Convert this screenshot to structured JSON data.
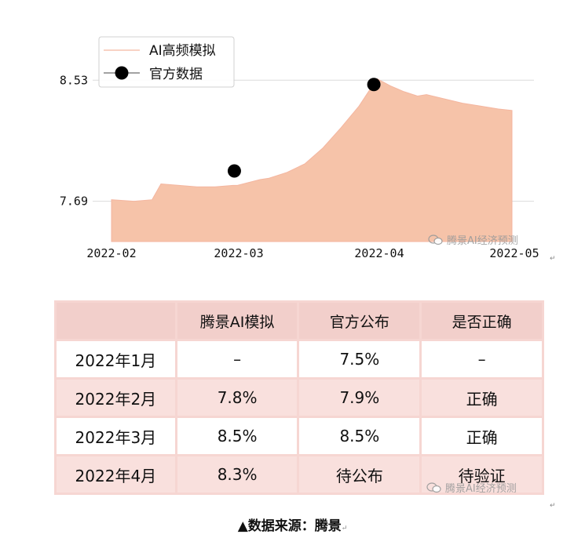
{
  "chart_data": {
    "type": "area",
    "legend": {
      "placement": "top-left",
      "entries": [
        "AI高频模拟",
        "官方数据"
      ]
    },
    "x_ticks": [
      "2022-02",
      "2022-03",
      "2022-04",
      "2022-05"
    ],
    "y_ticks": [
      "8.53",
      "7.69"
    ],
    "ylim": [
      7.41,
      8.76
    ],
    "xlim": [
      "2022-02-01",
      "2022-05-01"
    ],
    "grid": "horizontal",
    "series": [
      {
        "name": "AI高频模拟",
        "kind": "area",
        "color": "#f6c3a9",
        "line_color": "#f4b6a0",
        "x": [
          "2022-02-01",
          "2022-02-06",
          "2022-02-10",
          "2022-02-12",
          "2022-02-16",
          "2022-02-20",
          "2022-02-24",
          "2022-02-28",
          "2022-03-01",
          "2022-03-06",
          "2022-03-08",
          "2022-03-12",
          "2022-03-16",
          "2022-03-20",
          "2022-03-24",
          "2022-03-28",
          "2022-04-01",
          "2022-04-04",
          "2022-04-07",
          "2022-04-10",
          "2022-04-12",
          "2022-04-16",
          "2022-04-20",
          "2022-04-24",
          "2022-04-28",
          "2022-05-01"
        ],
        "y": [
          7.7,
          7.69,
          7.7,
          7.81,
          7.8,
          7.79,
          7.79,
          7.8,
          7.8,
          7.84,
          7.85,
          7.89,
          7.95,
          8.06,
          8.2,
          8.35,
          8.54,
          8.49,
          8.45,
          8.42,
          8.43,
          8.4,
          8.37,
          8.35,
          8.33,
          8.32
        ]
      },
      {
        "name": "官方数据",
        "kind": "scatter",
        "color": "#000000",
        "x": [
          "2022-03-01",
          "2022-04-01"
        ],
        "y": [
          7.9,
          8.5
        ]
      }
    ]
  },
  "watermark": "腾景AI经济预测",
  "table": {
    "header": [
      "",
      "腾景AI模拟",
      "官方公布",
      "是否正确"
    ],
    "rows": [
      [
        "2022年1月",
        "–",
        "7.5%",
        "–"
      ],
      [
        "2022年2月",
        "7.8%",
        "7.9%",
        "正确"
      ],
      [
        "2022年3月",
        "8.5%",
        "8.5%",
        "正确"
      ],
      [
        "2022年4月",
        "8.3%",
        "待公布",
        "待验证"
      ]
    ]
  },
  "caption": "▲数据来源：腾景",
  "return_mark": "↵"
}
